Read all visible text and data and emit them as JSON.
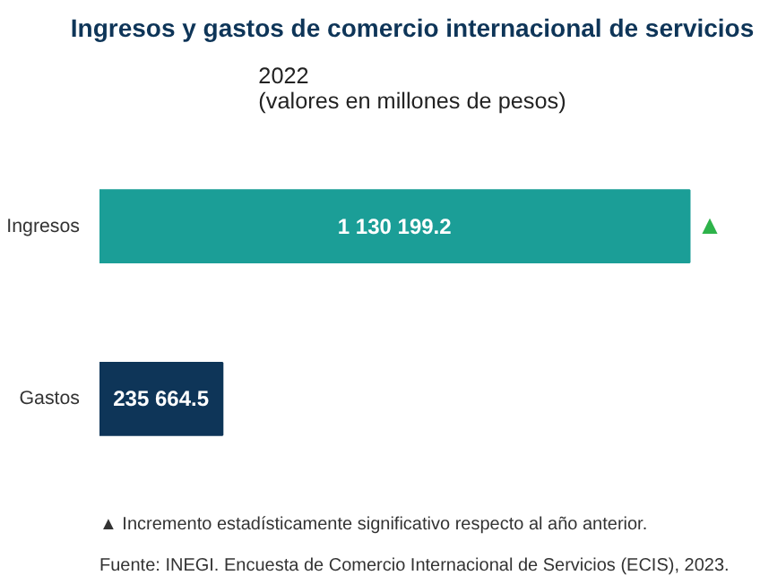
{
  "chart_data": {
    "type": "bar",
    "orientation": "horizontal",
    "title": "Ingresos y gastos de comercio internacional de servicios",
    "subtitle": "2022\n(valores en millones de pesos)",
    "categories": [
      "Ingresos",
      "Gastos"
    ],
    "values": [
      1130199.2,
      235664.5
    ],
    "colors": [
      "#1b9e97",
      "#0e3558"
    ],
    "data_labels": true,
    "value_labels": [
      "1 130 199.2",
      "235 664.5"
    ],
    "grid": false,
    "tick_labels": "y",
    "annotations": [
      {
        "text": "▲",
        "x": 1130199.2,
        "y": "Ingresos"
      },
      "▲      Incremento estadísticamente significativo respecto al año anterior.",
      "Fuente: INEGI. Encuesta de Comercio Internacional de Servicios (ECIS), 2023."
    ]
  }
}
